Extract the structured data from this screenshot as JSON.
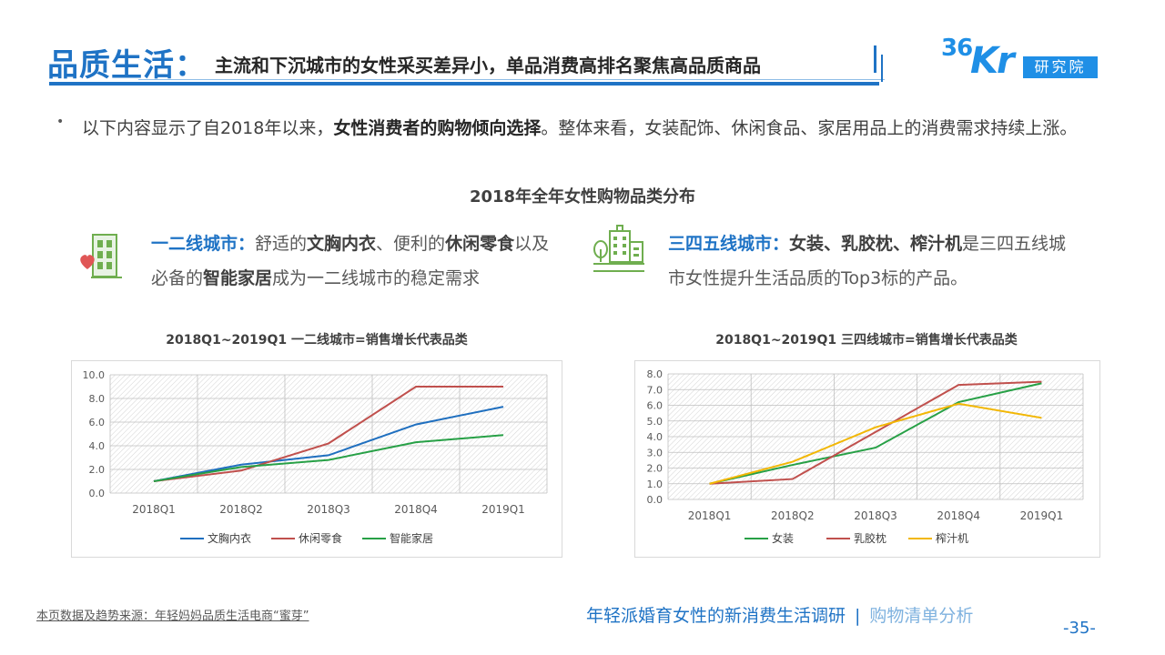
{
  "header": {
    "title": "品质生活：",
    "subtitle": "主流和下沉城市的女性采买差异小，单品消费高排名聚焦高品质商品"
  },
  "logo": {
    "brand_num": "36",
    "brand_kr": "Kr",
    "brand_box": "研究院"
  },
  "intro": {
    "bullet": "•",
    "part1": "以下内容显示了自2018年以来，",
    "bold": "女性消费者的购物倾向选择",
    "part2": "。整体来看，女装配饰、休闲食品、家居用品上的消费需求持续上涨。"
  },
  "section_title": "2018年全年女性购物品类分布",
  "tier1": {
    "icon": "city-building-heart-icon",
    "label": "一二线城市：",
    "t1": "舒适的",
    "b1": "文胸内衣",
    "t2": "、便利的",
    "b2": "休闲零食",
    "t3": "以及必备的",
    "b3": "智能家居",
    "t4": "成为一二线城市的稳定需求"
  },
  "tier3": {
    "icon": "town-buildings-tree-icon",
    "label": "三四五线城市：",
    "b1": "女装、乳胶枕、榨汁机",
    "t1": "是三四五线城市女性提升生活品质的Top3标的产品。"
  },
  "colors": {
    "blue": "#1f6fbf",
    "red": "#c0504d",
    "green": "#27a046",
    "yellow": "#f2b705",
    "accent": "#1f73c5"
  },
  "chart_data": [
    {
      "type": "line",
      "title": "2018Q1~2019Q1 一二线城市=销售增长代表品类",
      "x": [
        "2018Q1",
        "2018Q2",
        "2018Q3",
        "2018Q4",
        "2019Q1"
      ],
      "ylim": [
        0,
        10
      ],
      "yticks": [
        "0.0",
        "2.0",
        "4.0",
        "6.0",
        "8.0",
        "10.0"
      ],
      "grid": true,
      "legend": "bottom",
      "series": [
        {
          "name": "文胸内衣",
          "color": "#1f6fbf",
          "values": [
            1.0,
            2.4,
            3.2,
            5.8,
            7.3
          ]
        },
        {
          "name": "休闲零食",
          "color": "#c0504d",
          "values": [
            1.0,
            1.9,
            4.2,
            9.0,
            9.0
          ]
        },
        {
          "name": "智能家居",
          "color": "#27a046",
          "values": [
            1.0,
            2.2,
            2.8,
            4.3,
            4.9
          ]
        }
      ]
    },
    {
      "type": "line",
      "title": "2018Q1~2019Q1 三四线城市=销售增长代表品类",
      "x": [
        "2018Q1",
        "2018Q2",
        "2018Q3",
        "2018Q4",
        "2019Q1"
      ],
      "ylim": [
        0,
        8
      ],
      "yticks": [
        "0.0",
        "1.0",
        "2.0",
        "3.0",
        "4.0",
        "5.0",
        "6.0",
        "7.0",
        "8.0"
      ],
      "grid": true,
      "legend": "bottom",
      "series": [
        {
          "name": "女装",
          "color": "#27a046",
          "values": [
            1.0,
            2.2,
            3.3,
            6.2,
            7.4
          ]
        },
        {
          "name": "乳胶枕",
          "color": "#c0504d",
          "values": [
            1.0,
            1.3,
            4.3,
            7.3,
            7.5
          ]
        },
        {
          "name": "榨汁机",
          "color": "#f2b705",
          "values": [
            1.0,
            2.4,
            4.6,
            6.1,
            5.2
          ]
        }
      ]
    }
  ],
  "footer": {
    "source": "本页数据及趋势来源：年轻妈妈品质生活电商“蜜芽”",
    "report": "年轻派婚育女性的新消费生活调研",
    "sep": "|",
    "section": "购物清单分析",
    "page": "-35-"
  }
}
